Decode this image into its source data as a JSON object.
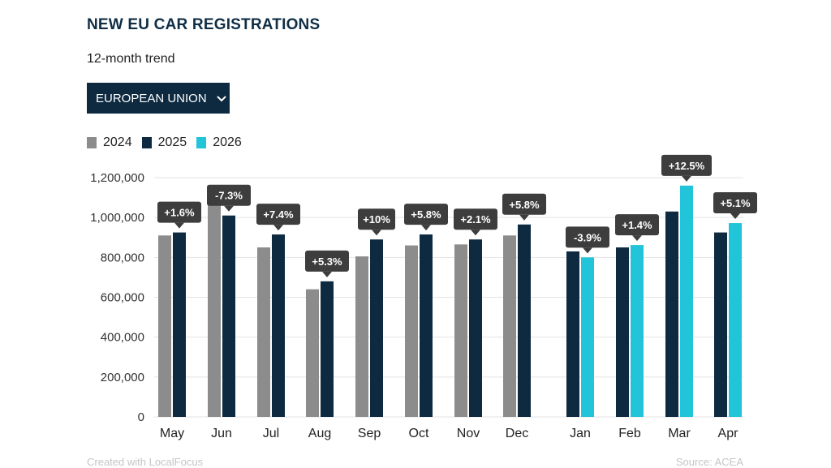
{
  "header": {
    "title": "NEW EU CAR REGISTRATIONS",
    "subtitle": "12-month trend",
    "region_select": "EUROPEAN UNION"
  },
  "colors": {
    "2024": "#8c8c8c",
    "2025": "#0d2a40",
    "2026": "#21c4d8",
    "callout": "#3d3d3d",
    "gridline": "#e3e3e3"
  },
  "footer": {
    "credit": "Created with LocalFocus",
    "source": "Source: ACEA"
  },
  "chart_data": {
    "type": "bar",
    "title": "NEW EU CAR REGISTRATIONS",
    "subtitle": "12-month trend",
    "categories": [
      "May",
      "Jun",
      "Jul",
      "Aug",
      "Sep",
      "Oct",
      "Nov",
      "Dec",
      "Jan",
      "Feb",
      "Mar",
      "Apr"
    ],
    "series": [
      {
        "name": "2024",
        "values": [
          910000,
          1090000,
          850000,
          640000,
          805000,
          860000,
          865000,
          910000,
          null,
          null,
          null,
          null
        ]
      },
      {
        "name": "2025",
        "values": [
          925000,
          1010000,
          915000,
          680000,
          890000,
          915000,
          890000,
          965000,
          830000,
          850000,
          1030000,
          925000
        ]
      },
      {
        "name": "2026",
        "values": [
          null,
          null,
          null,
          null,
          null,
          null,
          null,
          null,
          800000,
          862000,
          1160000,
          972000
        ]
      }
    ],
    "changes": [
      "+1.6%",
      "-7.3%",
      "+7.4%",
      "+5.3%",
      "+10%",
      "+5.8%",
      "+2.1%",
      "+5.8%",
      "-3.9%",
      "+1.4%",
      "+12.5%",
      "+5.1%"
    ],
    "yticks": [
      "0",
      "200,000",
      "400,000",
      "600,000",
      "800,000",
      "1,000,000",
      "1,200,000"
    ],
    "ylim": [
      0,
      1200000
    ],
    "legend": [
      "2024",
      "2025",
      "2026"
    ],
    "legend_position": "top-left",
    "grid": true
  }
}
